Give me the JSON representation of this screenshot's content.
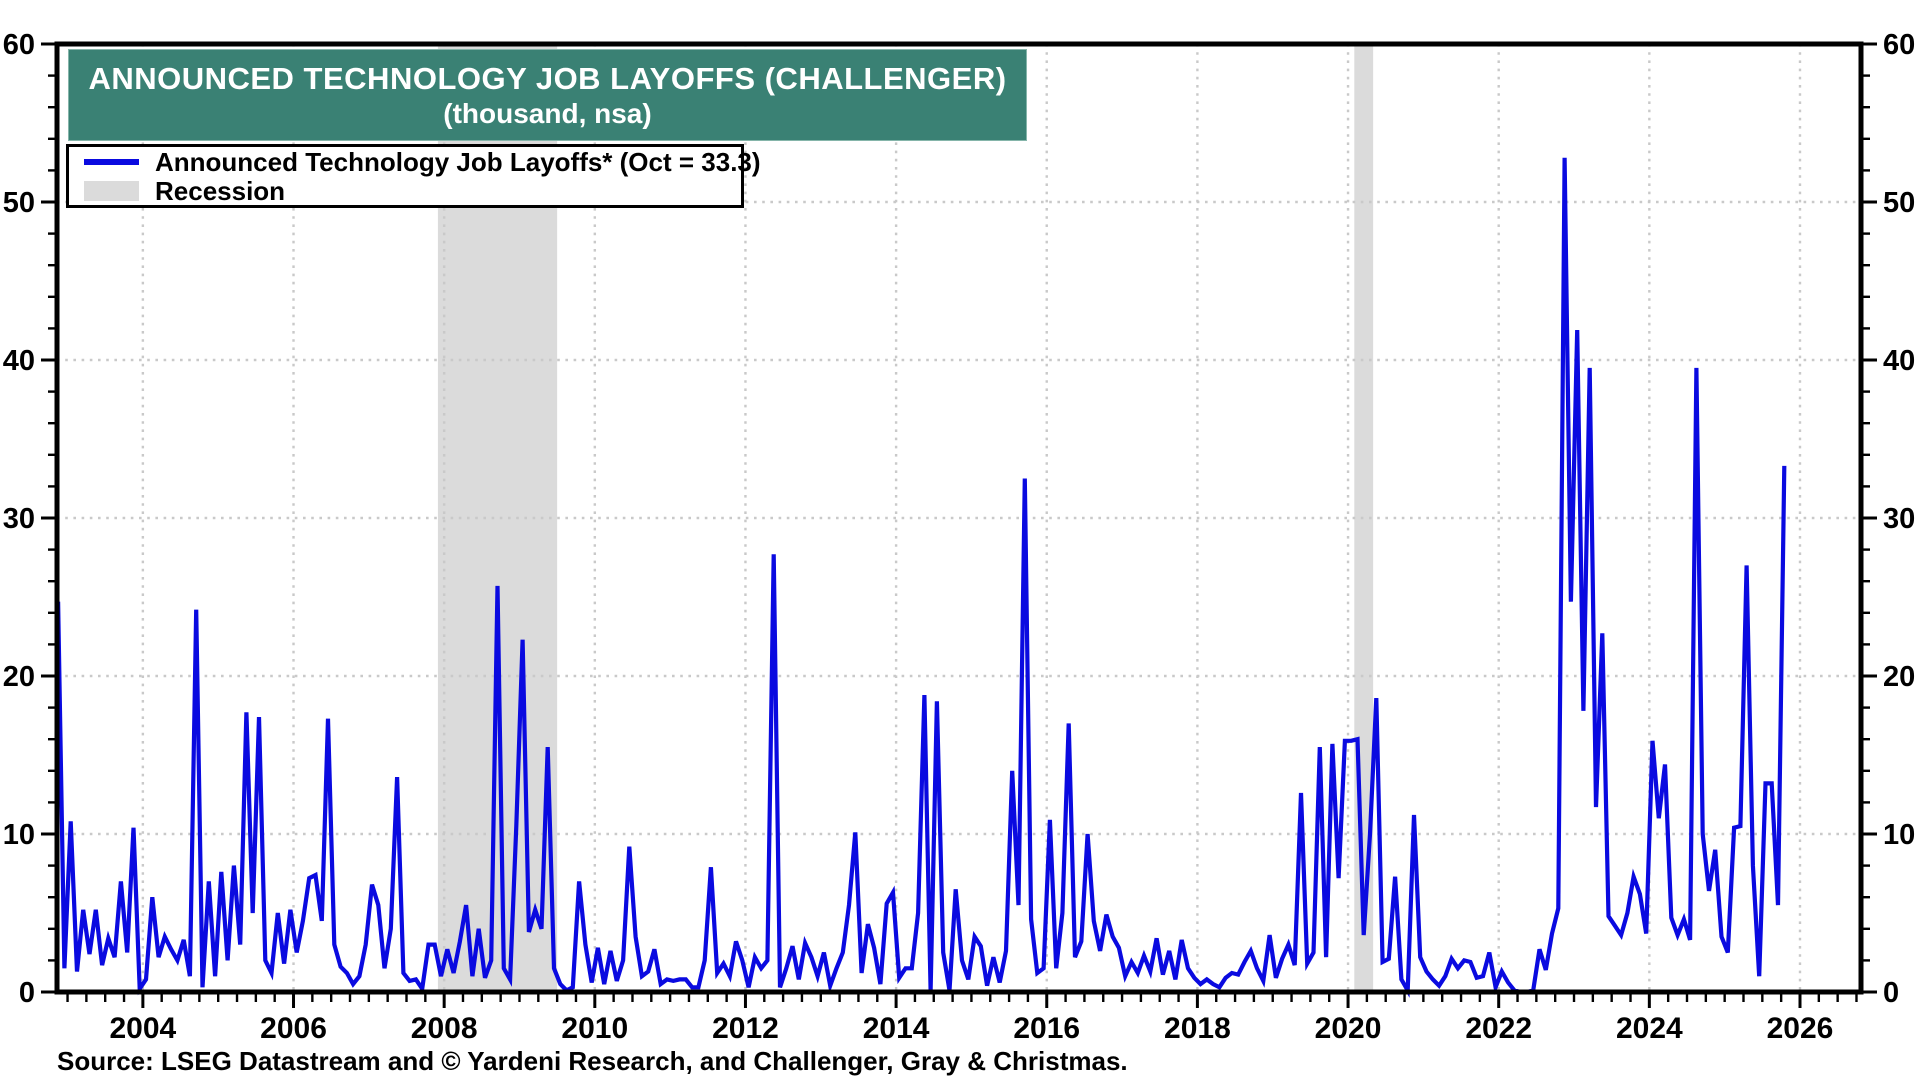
{
  "header": {
    "title": "ANNOUNCED TECHNOLOGY JOB LAYOFFS (CHALLENGER)",
    "subtitle": "(thousand, nsa)"
  },
  "legend": {
    "series_label": "Announced Technology Job Layoffs* (Oct = 33.3)",
    "recession_label": "Recession"
  },
  "source": "Source: LSEG Datastream and © Yardeni Research, and Challenger, Gray & Christmas.",
  "colors": {
    "line": "#0a0ae0",
    "recession": "#dbdbdb",
    "title_bg": "#3a8174",
    "title_text": "#ffffff",
    "grid": "#c9c9c9",
    "axis": "#000000"
  },
  "chart_data": {
    "type": "line",
    "title": "ANNOUNCED TECHNOLOGY JOB LAYOFFS (CHALLENGER)",
    "subtitle": "(thousand, nsa)",
    "series_name": "Announced Technology Job Layoffs",
    "latest_point": {
      "month": "Oct 2025",
      "value": 33.3
    },
    "unit": "thousand, nsa",
    "ylim": [
      0,
      60
    ],
    "y_major_ticks": [
      0,
      10,
      20,
      30,
      40,
      50,
      60
    ],
    "y_minor_step": 2,
    "xlim": [
      2002.86,
      2026.81
    ],
    "x_major_ticks": [
      2004,
      2006,
      2008,
      2010,
      2012,
      2014,
      2016,
      2018,
      2020,
      2022,
      2024,
      2026
    ],
    "x_minor_step": 0.25,
    "grid": "dotted-on-majors",
    "legend_position": "top-left",
    "start_year": 2002,
    "start_month": 11,
    "frequency": "monthly",
    "values": [
      24.7,
      1.5,
      10.8,
      1.3,
      5.2,
      2.4,
      5.2,
      1.7,
      3.4,
      2.2,
      7.0,
      2.5,
      10.4,
      0.2,
      0.8,
      6.0,
      2.2,
      3.5,
      2.7,
      2.0,
      3.3,
      1.0,
      24.2,
      0.3,
      7.0,
      1.0,
      7.6,
      2.0,
      8.0,
      3.0,
      17.7,
      5.0,
      17.4,
      2.0,
      1.2,
      5.0,
      1.8,
      5.2,
      2.5,
      4.5,
      7.2,
      7.4,
      4.5,
      17.3,
      3.0,
      1.6,
      1.2,
      0.5,
      1.0,
      3.0,
      6.8,
      5.5,
      1.5,
      4.0,
      13.6,
      1.2,
      0.7,
      0.8,
      0.2,
      3.0,
      3.0,
      1.0,
      2.7,
      1.2,
      3.2,
      5.5,
      1.0,
      4.0,
      0.9,
      2.0,
      25.7,
      1.5,
      0.8,
      10.5,
      22.3,
      3.8,
      5.2,
      4.0,
      15.5,
      1.5,
      0.5,
      0.1,
      0.3,
      7.0,
      3.0,
      0.6,
      2.8,
      0.5,
      2.6,
      0.7,
      2.0,
      9.2,
      3.5,
      1.0,
      1.3,
      2.7,
      0.5,
      0.8,
      0.7,
      0.8,
      0.8,
      0.3,
      0.3,
      2.0,
      7.9,
      1.2,
      1.8,
      1.0,
      3.2,
      2.0,
      0.3,
      2.2,
      1.5,
      2.0,
      27.7,
      0.3,
      1.5,
      2.9,
      0.8,
      3.1,
      2.2,
      1.0,
      2.5,
      0.4,
      1.5,
      2.5,
      5.5,
      10.1,
      1.2,
      4.3,
      2.8,
      0.5,
      5.6,
      6.3,
      0.9,
      1.5,
      1.5,
      5.0,
      18.8,
      0.1,
      18.4,
      2.5,
      0.1,
      6.5,
      2.0,
      0.8,
      3.5,
      2.9,
      0.4,
      2.2,
      0.6,
      2.6,
      14.0,
      5.5,
      32.5,
      4.6,
      1.2,
      1.5,
      10.9,
      1.5,
      5.0,
      17.0,
      2.2,
      3.2,
      10.0,
      4.5,
      2.6,
      4.9,
      3.5,
      2.8,
      1.0,
      1.9,
      1.2,
      2.3,
      1.3,
      3.4,
      1.1,
      2.6,
      0.8,
      3.3,
      1.5,
      0.9,
      0.5,
      0.8,
      0.5,
      0.3,
      0.9,
      1.2,
      1.1,
      1.9,
      2.6,
      1.5,
      0.7,
      3.6,
      0.9,
      2.1,
      3.0,
      1.7,
      12.6,
      1.8,
      2.5,
      15.5,
      2.2,
      15.7,
      7.2,
      15.9,
      15.9,
      16.0,
      3.6,
      10.0,
      18.6,
      1.9,
      2.1,
      7.3,
      0.8,
      0.1,
      11.2,
      2.2,
      1.3,
      0.8,
      0.4,
      1.0,
      2.1,
      1.5,
      2.0,
      1.9,
      0.9,
      1.0,
      2.5,
      0.3,
      1.3,
      0.6,
      0.1,
      0.0,
      0.0,
      0.1,
      2.7,
      1.4,
      3.7,
      5.3,
      52.8,
      24.7,
      41.9,
      17.8,
      39.5,
      11.7,
      22.7,
      4.8,
      4.2,
      3.6,
      5.0,
      7.3,
      6.2,
      3.7,
      15.9,
      11.0,
      14.4,
      4.7,
      3.6,
      4.6,
      3.3,
      39.5,
      10.0,
      6.4,
      9.0,
      3.5,
      2.5,
      10.4,
      10.5,
      27.0,
      8.0,
      1.0,
      13.2,
      13.2,
      5.5,
      33.3
    ],
    "recessions": [
      [
        2007.917,
        2009.5
      ],
      [
        2020.083,
        2020.333
      ]
    ]
  }
}
